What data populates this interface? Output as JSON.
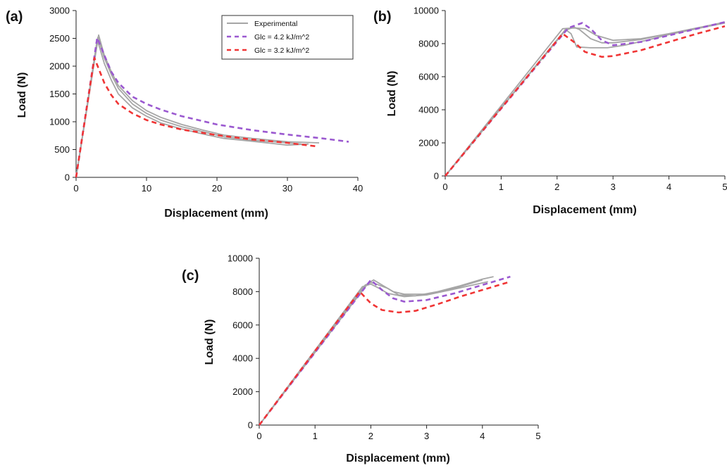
{
  "colors": {
    "experimental": "#a6a6a6",
    "glc_42": "#9b59d0",
    "glc_32": "#f03535"
  },
  "chart_data": [
    {
      "type": "line",
      "panel_label": "(a)",
      "xlabel": "Displacement (mm)",
      "ylabel": "Load (N)",
      "xlim": [
        0,
        40
      ],
      "ylim": [
        0,
        3000
      ],
      "x_ticks": [
        "0",
        "10",
        "20",
        "30",
        "40"
      ],
      "y_ticks": [
        "0",
        "500",
        "1000",
        "1500",
        "2000",
        "2500",
        "3000"
      ],
      "grid": false,
      "legend": {
        "placement": "top-right",
        "entries": [
          "Experimental",
          "Glc = 4.2 kJ/m^2",
          "Glc = 3.2 kJ/m^2"
        ]
      },
      "series": [
        {
          "name": "Experimental",
          "style": "solid",
          "color_key": "experimental",
          "x": [
            0,
            3.2,
            4,
            5,
            6,
            8,
            10,
            12,
            15,
            18,
            21,
            25,
            30,
            34.5
          ],
          "y": [
            0,
            2560,
            2200,
            1900,
            1650,
            1380,
            1200,
            1080,
            950,
            850,
            760,
            700,
            640,
            620
          ]
        },
        {
          "name": "Experimental",
          "style": "solid",
          "color_key": "experimental",
          "x": [
            0,
            3.0,
            4,
            5,
            6,
            8,
            10,
            12,
            15,
            18,
            21,
            25,
            30,
            33
          ],
          "y": [
            0,
            2480,
            2050,
            1750,
            1500,
            1250,
            1100,
            980,
            870,
            780,
            700,
            650,
            580,
            600
          ]
        },
        {
          "name": "Experimental",
          "style": "solid",
          "color_key": "experimental",
          "x": [
            0,
            3.1,
            4,
            5,
            6,
            8,
            10,
            12,
            15,
            18,
            21,
            25,
            30,
            32
          ],
          "y": [
            0,
            2520,
            2150,
            1850,
            1600,
            1320,
            1150,
            1030,
            910,
            820,
            730,
            670,
            620,
            600
          ]
        },
        {
          "name": "Glc = 4.2 kJ/m^2",
          "style": "dashed",
          "color_key": "glc_42",
          "x": [
            0,
            3.0,
            4,
            5,
            6,
            8,
            10,
            12,
            15,
            20,
            25,
            30,
            35,
            38.7
          ],
          "y": [
            0,
            2510,
            2200,
            1900,
            1700,
            1450,
            1320,
            1220,
            1100,
            950,
            850,
            770,
            700,
            640
          ]
        },
        {
          "name": "Glc = 3.2 kJ/m^2",
          "style": "dashed",
          "color_key": "glc_32",
          "x": [
            0,
            2.6,
            4,
            5,
            6,
            8,
            10,
            12,
            15,
            20,
            25,
            30,
            34
          ],
          "y": [
            0,
            2150,
            1700,
            1480,
            1320,
            1150,
            1030,
            950,
            860,
            760,
            680,
            620,
            560
          ]
        }
      ]
    },
    {
      "type": "line",
      "panel_label": "(b)",
      "xlabel": "Displacement (mm)",
      "ylabel": "Load (N)",
      "xlim": [
        0,
        5
      ],
      "ylim": [
        0,
        10000
      ],
      "x_ticks": [
        "0",
        "1",
        "2",
        "3",
        "4",
        "5"
      ],
      "y_ticks": [
        "0",
        "2000",
        "4000",
        "6000",
        "8000",
        "10000"
      ],
      "grid": false,
      "series": [
        {
          "name": "Experimental",
          "style": "solid",
          "color_key": "experimental",
          "x": [
            0,
            2.1,
            2.3,
            2.5,
            2.7,
            3.0,
            3.5,
            4.0,
            4.5,
            5.0
          ],
          "y": [
            0,
            8900,
            8950,
            8900,
            8500,
            8200,
            8300,
            8600,
            8950,
            9300
          ]
        },
        {
          "name": "Experimental",
          "style": "solid",
          "color_key": "experimental",
          "x": [
            0,
            2.15,
            2.3,
            2.4,
            2.6,
            2.8,
            3.0,
            3.5,
            4.0,
            4.5,
            5.0
          ],
          "y": [
            0,
            8800,
            9000,
            8850,
            8300,
            8050,
            8050,
            8250,
            8600,
            8950,
            9250
          ]
        },
        {
          "name": "Experimental",
          "style": "solid",
          "color_key": "experimental",
          "x": [
            0,
            2.15,
            2.25,
            2.35,
            2.6,
            2.9,
            3.2,
            3.6,
            4.0,
            4.5,
            5.0
          ],
          "y": [
            0,
            8850,
            8600,
            7800,
            7750,
            7750,
            7900,
            8200,
            8550,
            8900,
            9250
          ]
        },
        {
          "name": "Glc = 4.2 kJ/m^2",
          "style": "dashed",
          "color_key": "glc_42",
          "x": [
            0,
            2.2,
            2.45,
            2.6,
            2.8,
            3.0,
            3.5,
            4.0,
            4.5,
            5.0
          ],
          "y": [
            0,
            8950,
            9250,
            8900,
            8200,
            7900,
            8100,
            8500,
            8900,
            9300
          ]
        },
        {
          "name": "Glc = 3.2 kJ/m^2",
          "style": "dashed",
          "color_key": "glc_32",
          "x": [
            0,
            2.1,
            2.3,
            2.5,
            2.8,
            3.0,
            3.5,
            4.0,
            4.5,
            5.0
          ],
          "y": [
            0,
            8600,
            8100,
            7500,
            7200,
            7250,
            7600,
            8100,
            8600,
            9050
          ]
        }
      ]
    },
    {
      "type": "line",
      "panel_label": "(c)",
      "xlabel": "Displacement (mm)",
      "ylabel": "Load (N)",
      "xlim": [
        0,
        5
      ],
      "ylim": [
        0,
        10000
      ],
      "x_ticks": [
        "0",
        "1",
        "2",
        "3",
        "4",
        "5"
      ],
      "y_ticks": [
        "0",
        "2000",
        "4000",
        "6000",
        "8000",
        "10000"
      ],
      "grid": false,
      "series": [
        {
          "name": "Experimental",
          "style": "solid",
          "color_key": "experimental",
          "x": [
            0,
            1.9,
            2.0,
            2.1,
            2.3,
            2.5,
            2.8,
            3.2,
            3.6,
            4.0,
            4.2
          ],
          "y": [
            0,
            8400,
            8550,
            8450,
            8200,
            7800,
            7750,
            8000,
            8350,
            8750,
            8900
          ]
        },
        {
          "name": "Experimental",
          "style": "solid",
          "color_key": "experimental",
          "x": [
            0,
            1.95,
            2.05,
            2.2,
            2.4,
            2.6,
            3.0,
            3.5,
            4.0
          ],
          "y": [
            0,
            8500,
            8700,
            8400,
            8000,
            7850,
            7850,
            8200,
            8700
          ]
        },
        {
          "name": "Experimental",
          "style": "solid",
          "color_key": "experimental",
          "x": [
            0,
            1.85,
            2.0,
            2.15,
            2.3,
            2.6,
            3.0,
            3.5,
            4.1
          ],
          "y": [
            0,
            8300,
            8450,
            8200,
            7900,
            7700,
            7800,
            8150,
            8600
          ]
        },
        {
          "name": "Glc = 4.2 kJ/m^2",
          "style": "dashed",
          "color_key": "glc_42",
          "x": [
            0,
            2.0,
            2.2,
            2.4,
            2.6,
            3.0,
            3.5,
            4.0,
            4.5
          ],
          "y": [
            0,
            8700,
            8100,
            7600,
            7400,
            7500,
            7900,
            8400,
            8900
          ]
        },
        {
          "name": "Glc = 3.2 kJ/m^2",
          "style": "dashed",
          "color_key": "glc_32",
          "x": [
            0,
            1.8,
            2.0,
            2.2,
            2.5,
            2.8,
            3.2,
            3.6,
            4.0,
            4.5
          ],
          "y": [
            0,
            8000,
            7300,
            6900,
            6750,
            6850,
            7250,
            7700,
            8100,
            8600
          ]
        }
      ]
    }
  ]
}
